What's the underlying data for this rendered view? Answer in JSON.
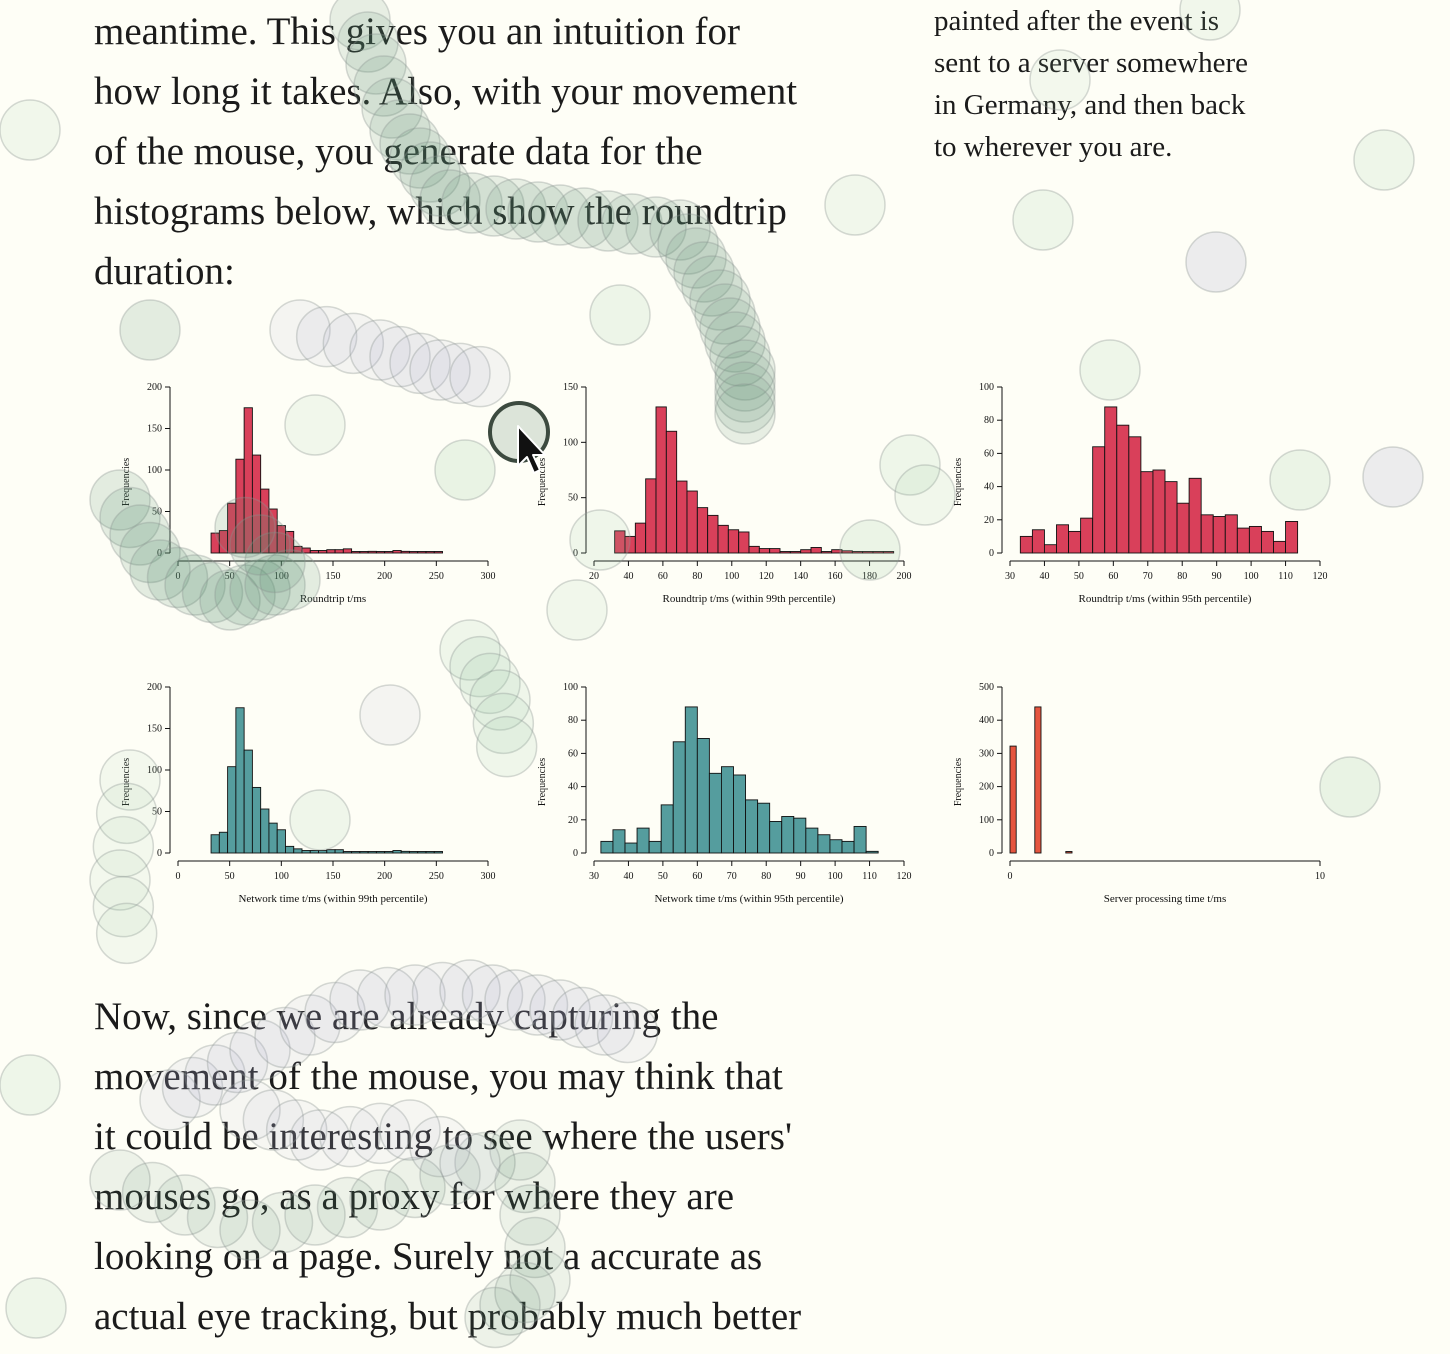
{
  "article": {
    "paragraph1_lines": [
      "meantime. This gives you an intuition for",
      "how long it takes. Also, with your movement",
      "of the mouse, you generate data for the",
      "histograms below, which show the roundtrip",
      "duration:"
    ],
    "sidenote_lines": [
      "painted after the event is",
      "sent to a server somewhere",
      "in Germany, and then back",
      "to wherever you are."
    ],
    "paragraph2_lines": [
      "Now, since we are already capturing the",
      "movement of the mouse, you may think that",
      "it could be interesting to see where the users'",
      "mouses go, as a proxy for where they are",
      "looking on a page. Surely not a accurate as",
      "actual eye tracking, but probably much better"
    ]
  },
  "colors": {
    "background": "#fefef6",
    "roundtrip_bar": "#d9405a",
    "network_bar": "#559d9e",
    "server_bar": "#e5553f",
    "bar_stroke": "#111111"
  },
  "chart_data": [
    {
      "id": "roundtrip",
      "type": "bar",
      "title": "",
      "xlabel": "Roundtrip t/ms",
      "ylabel": "Frequencies",
      "xlim": [
        0,
        300
      ],
      "ylim": [
        0,
        200
      ],
      "xticks": [
        0,
        50,
        100,
        150,
        200,
        250,
        300
      ],
      "yticks": [
        0,
        50,
        100,
        150,
        200
      ],
      "bin_width": 8,
      "x": [
        32,
        40,
        48,
        56,
        64,
        72,
        80,
        88,
        96,
        104,
        112,
        120,
        128,
        136,
        144,
        152,
        160,
        168,
        176,
        184,
        192,
        200,
        208,
        216,
        224,
        232,
        240,
        248
      ],
      "values": [
        24,
        27,
        60,
        113,
        175,
        118,
        77,
        53,
        33,
        26,
        8,
        6,
        3,
        3,
        4,
        4,
        5,
        1,
        0,
        2,
        0,
        0,
        3,
        2,
        1,
        0,
        0,
        1
      ],
      "color": "#d9405a"
    },
    {
      "id": "roundtrip99",
      "type": "bar",
      "title": "",
      "xlabel": "Roundtrip t/ms (within 99th percentile)",
      "ylabel": "Frequencies",
      "xlim": [
        20,
        200
      ],
      "ylim": [
        0,
        150
      ],
      "xticks": [
        20,
        40,
        60,
        80,
        100,
        120,
        140,
        160,
        180,
        200
      ],
      "yticks": [
        0,
        50,
        100,
        150
      ],
      "bin_width": 6,
      "x": [
        32,
        38,
        44,
        50,
        56,
        62,
        68,
        74,
        80,
        86,
        92,
        98,
        104,
        110,
        116,
        122,
        128,
        134,
        140,
        146,
        152,
        158,
        164,
        170,
        176,
        182,
        188
      ],
      "values": [
        20,
        15,
        27,
        67,
        132,
        110,
        65,
        56,
        41,
        34,
        25,
        21,
        19,
        6,
        4,
        4,
        1,
        1,
        3,
        5,
        1,
        3,
        2,
        1,
        0,
        1,
        1
      ],
      "color": "#d9405a"
    },
    {
      "id": "roundtrip95",
      "type": "bar",
      "title": "",
      "xlabel": "Roundtrip t/ms (within 95th percentile)",
      "ylabel": "Frequencies",
      "xlim": [
        30,
        120
      ],
      "ylim": [
        0,
        100
      ],
      "xticks": [
        30,
        40,
        50,
        60,
        70,
        80,
        90,
        100,
        110,
        120
      ],
      "yticks": [
        0,
        20,
        40,
        60,
        80,
        100
      ],
      "bin_width": 3.5,
      "x": [
        33,
        36.5,
        40,
        43.5,
        47,
        50.5,
        54,
        57.5,
        61,
        64.5,
        68,
        71.5,
        75,
        78.5,
        82,
        85.5,
        89,
        92.5,
        96,
        99.5,
        103,
        106.5,
        110
      ],
      "values": [
        10,
        14,
        5,
        17,
        13,
        21,
        64,
        88,
        77,
        70,
        49,
        50,
        43,
        30,
        45,
        23,
        22,
        23,
        15,
        16,
        13,
        7,
        19
      ],
      "color": "#d9405a"
    },
    {
      "id": "network99",
      "type": "bar",
      "title": "",
      "xlabel": "Network time t/ms (within 99th percentile)",
      "ylabel": "Frequencies",
      "xlim": [
        0,
        300
      ],
      "ylim": [
        0,
        200
      ],
      "xticks": [
        0,
        50,
        100,
        150,
        200,
        250,
        300
      ],
      "yticks": [
        0,
        50,
        100,
        150,
        200
      ],
      "bin_width": 8,
      "x": [
        32,
        40,
        48,
        56,
        64,
        72,
        80,
        88,
        96,
        104,
        112,
        120,
        128,
        136,
        144,
        152,
        160,
        168,
        176,
        184,
        192,
        200,
        208,
        216,
        224,
        232,
        240,
        248
      ],
      "values": [
        22,
        25,
        104,
        175,
        124,
        79,
        53,
        36,
        28,
        8,
        5,
        3,
        3,
        3,
        4,
        4,
        0,
        1,
        0,
        1,
        0,
        0,
        3,
        2,
        1,
        0,
        0,
        1
      ],
      "color": "#559d9e"
    },
    {
      "id": "network95",
      "type": "bar",
      "title": "",
      "xlabel": "Network time t/ms (within 95th percentile)",
      "ylabel": "Frequencies",
      "xlim": [
        30,
        120
      ],
      "ylim": [
        0,
        100
      ],
      "xticks": [
        30,
        40,
        50,
        60,
        70,
        80,
        90,
        100,
        110,
        120
      ],
      "yticks": [
        0,
        20,
        40,
        60,
        80,
        100
      ],
      "bin_width": 3.5,
      "x": [
        32,
        35.5,
        39,
        42.5,
        46,
        49.5,
        53,
        56.5,
        60,
        63.5,
        67,
        70.5,
        74,
        77.5,
        81,
        84.5,
        88,
        91.5,
        95,
        98.5,
        102,
        105.5,
        109
      ],
      "values": [
        7,
        14,
        6,
        15,
        7,
        29,
        67,
        88,
        69,
        48,
        52,
        47,
        32,
        30,
        19,
        22,
        21,
        15,
        11,
        8,
        7,
        16,
        1
      ],
      "color": "#559d9e"
    },
    {
      "id": "server",
      "type": "bar",
      "title": "",
      "xlabel": "Server processing time t/ms",
      "ylabel": "Frequencies",
      "xlim": [
        0,
        10
      ],
      "ylim": [
        0,
        500
      ],
      "xticks": [
        0,
        10
      ],
      "yticks": [
        0,
        100,
        200,
        300,
        400,
        500
      ],
      "bin_width": 0.2,
      "x": [
        0,
        0.8,
        1.8
      ],
      "values": [
        322,
        440,
        2
      ],
      "color": "#e5553f"
    }
  ]
}
